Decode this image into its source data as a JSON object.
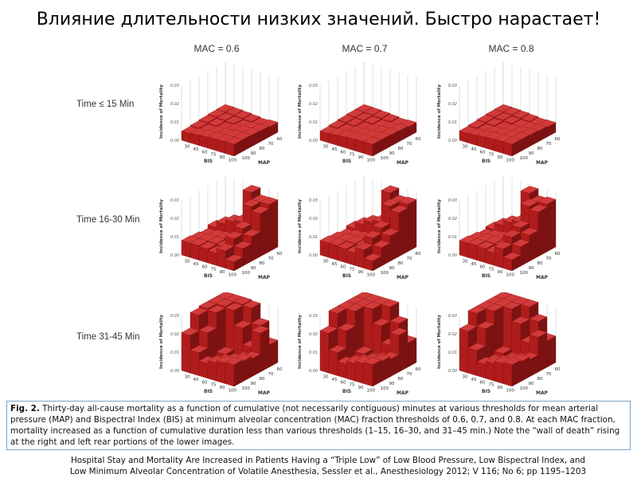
{
  "title": "Влияние длительности низких значений. Быстро нарастает!",
  "columns": [
    "MAC = 0.6",
    "MAC = 0.7",
    "MAC = 0.8"
  ],
  "rows": [
    "Time ≤ 15 Min",
    "Time 16-30 Min",
    "Time 31-45 Min"
  ],
  "axes": {
    "z_label": "Incidence of Mortality",
    "z_ticks": [
      "0.00",
      "0.01",
      "0.02",
      "0.03"
    ],
    "x_label": "BIS",
    "x_ticks": [
      "30",
      "45",
      "60",
      "75",
      "90",
      "100"
    ],
    "y_label": "MAP",
    "y_ticks": [
      "100",
      "90",
      "80",
      "70",
      "60"
    ]
  },
  "bar_color": "#b01c1c",
  "caption": {
    "bold": "Fig. 2.",
    "text": " Thirty-day all-cause mortality as a function of cumulative (not necessarily contiguous) minutes at various thresholds for mean arterial pressure (MAP) and Bispectral Index (BIS) at minimum alveolar concentration (MAC) fraction thresholds of 0.6, 0.7, and 0.8. At each MAC fraction, mortality increased as a function of cumulative duration less than various thresholds (1–15, 16–30, and 31–45 min.) Note the “wall of death” rising at the right and left rear portions of the lower images."
  },
  "citation": [
    "Hospital Stay and Mortality Are Increased in Patients Having a “Triple Low” of Low Blood Pressure, Low Bispectral Index, and",
    "Low Minimum  Alveolar Concentration of Volatile Anesthesia, Sessler et al., Anesthesiology 2012; V 116; No 6; pp 1195–1203"
  ]
}
